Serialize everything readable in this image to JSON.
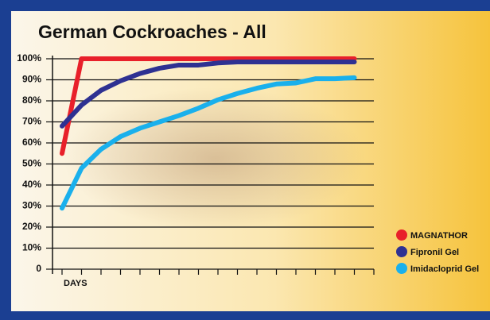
{
  "chart_data": {
    "type": "line",
    "title": "German Cockroaches - All",
    "x_label": "DAYS",
    "categories": [
      null,
      null,
      null,
      null,
      null,
      null,
      null,
      null,
      null,
      null,
      null,
      null,
      null,
      null,
      null,
      null,
      null
    ],
    "series": [
      {
        "name": "MAGNATHOR",
        "color": "#e8202a",
        "values": [
          55,
          100,
          100,
          100,
          100,
          100,
          100,
          100,
          100,
          100,
          100,
          100,
          100,
          100,
          100,
          100,
          null
        ]
      },
      {
        "name": "Fipronil Gel",
        "color": "#2e3192",
        "values": [
          68,
          78,
          85,
          89.5,
          93,
          95.5,
          97,
          97,
          98,
          98.5,
          98.5,
          98.5,
          98.5,
          98.5,
          98.5,
          98.5,
          null
        ]
      },
      {
        "name": "Imidacloprid Gel",
        "color": "#1ab0ec",
        "values": [
          29,
          48,
          57,
          63,
          67,
          70,
          73,
          76.5,
          80.5,
          83.5,
          86,
          88,
          88.5,
          90.5,
          90.5,
          91,
          null
        ]
      }
    ],
    "ylim": [
      0,
      100
    ],
    "yticks": [
      0,
      {
        "value": 10,
        "label": "10%"
      },
      {
        "value": 20,
        "label": "20%"
      },
      {
        "value": 30,
        "label": "30%"
      },
      {
        "value": 40,
        "label": "40%"
      },
      {
        "value": 50,
        "label": "50%"
      },
      {
        "value": 60,
        "label": "60%"
      },
      {
        "value": 70,
        "label": "70%"
      },
      {
        "value": 80,
        "label": "80%"
      },
      {
        "value": 90,
        "label": "90%"
      },
      {
        "value": 100,
        "label": "100%"
      }
    ],
    "grid": true,
    "legend": "bottom-right"
  }
}
